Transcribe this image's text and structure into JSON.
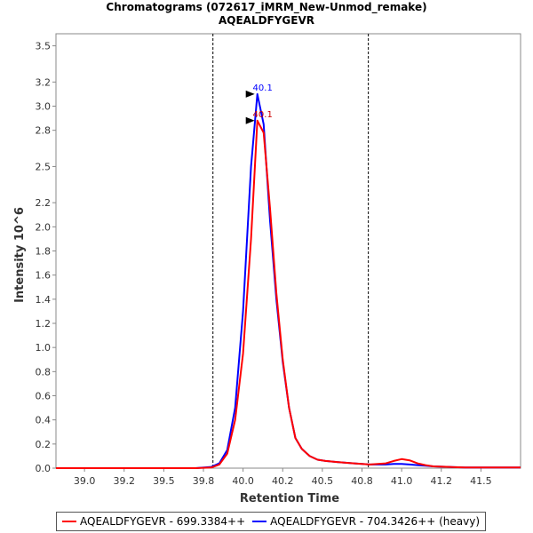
{
  "chart_data": {
    "type": "line",
    "title": "Chromatograms (072617_iMRM_New-Unmod_remake)",
    "subtitle": "AQEALDFYGEVR",
    "xlabel": "Retention Time",
    "ylabel": "Intensity 10^6",
    "xlim": [
      38.82,
      41.75
    ],
    "ylim": [
      0.0,
      3.6
    ],
    "xticks": [
      "39.0",
      "39.2",
      "39.5",
      "39.8",
      "40.0",
      "40.2",
      "40.5",
      "40.8",
      "41.0",
      "41.2",
      "41.5"
    ],
    "xtick_values": [
      39.0,
      39.25,
      39.5,
      39.75,
      40.0,
      40.25,
      40.5,
      40.75,
      41.0,
      41.25,
      41.5
    ],
    "yticks": [
      "0.0",
      "0.2",
      "0.4",
      "0.6",
      "0.8",
      "1.0",
      "1.2",
      "1.4",
      "1.6",
      "1.8",
      "2.0",
      "2.2",
      "2.5",
      "2.8",
      "3.0",
      "3.2",
      "3.5"
    ],
    "ytick_values": [
      0.0,
      0.2,
      0.4,
      0.6,
      0.8,
      1.0,
      1.2,
      1.4,
      1.6,
      1.8,
      2.0,
      2.2,
      2.5,
      2.8,
      3.0,
      3.2,
      3.5
    ],
    "grid": false,
    "vlines": [
      39.81,
      40.79
    ],
    "series": [
      {
        "name": "AQEALDFYGEVR - 699.3384++",
        "color": "#ff0000",
        "x": [
          38.82,
          39.7,
          39.8,
          39.85,
          39.9,
          39.95,
          40.0,
          40.05,
          40.09,
          40.13,
          40.17,
          40.21,
          40.25,
          40.29,
          40.33,
          40.37,
          40.42,
          40.47,
          40.52,
          40.6,
          40.7,
          40.8,
          40.9,
          40.95,
          41.0,
          41.05,
          41.1,
          41.15,
          41.2,
          41.3,
          41.4,
          41.5,
          41.75
        ],
        "y": [
          0.0,
          0.0,
          0.005,
          0.03,
          0.12,
          0.4,
          0.95,
          1.9,
          2.88,
          2.78,
          2.15,
          1.45,
          0.9,
          0.5,
          0.25,
          0.16,
          0.1,
          0.07,
          0.06,
          0.05,
          0.04,
          0.03,
          0.04,
          0.06,
          0.075,
          0.065,
          0.04,
          0.025,
          0.015,
          0.01,
          0.005,
          0.005,
          0.005
        ]
      },
      {
        "name": "AQEALDFYGEVR - 704.3426++ (heavy)",
        "color": "#0000ff",
        "x": [
          38.82,
          39.7,
          39.8,
          39.85,
          39.9,
          39.95,
          40.0,
          40.05,
          40.09,
          40.13,
          40.17,
          40.21,
          40.25,
          40.29,
          40.33,
          40.37,
          40.42,
          40.47,
          40.52,
          40.6,
          40.7,
          40.8,
          40.9,
          40.95,
          41.0,
          41.05,
          41.1,
          41.15,
          41.2,
          41.3,
          41.4,
          41.5,
          41.75
        ],
        "y": [
          0.0,
          0.0,
          0.01,
          0.04,
          0.15,
          0.5,
          1.3,
          2.5,
          3.1,
          2.85,
          2.05,
          1.4,
          0.88,
          0.5,
          0.25,
          0.16,
          0.1,
          0.07,
          0.06,
          0.05,
          0.04,
          0.03,
          0.03,
          0.035,
          0.035,
          0.03,
          0.025,
          0.02,
          0.015,
          0.01,
          0.005,
          0.005,
          0.005
        ]
      }
    ],
    "annotations": [
      {
        "text": "40.1",
        "x": 40.09,
        "y": 3.1,
        "color": "#0000ff"
      },
      {
        "text": "40.1",
        "x": 40.09,
        "y": 2.88,
        "color": "#cc0000"
      }
    ],
    "legend": {
      "position": "bottom",
      "entries": [
        "AQEALDFYGEVR - 699.3384++",
        "AQEALDFYGEVR - 704.3426++ (heavy)"
      ]
    }
  }
}
